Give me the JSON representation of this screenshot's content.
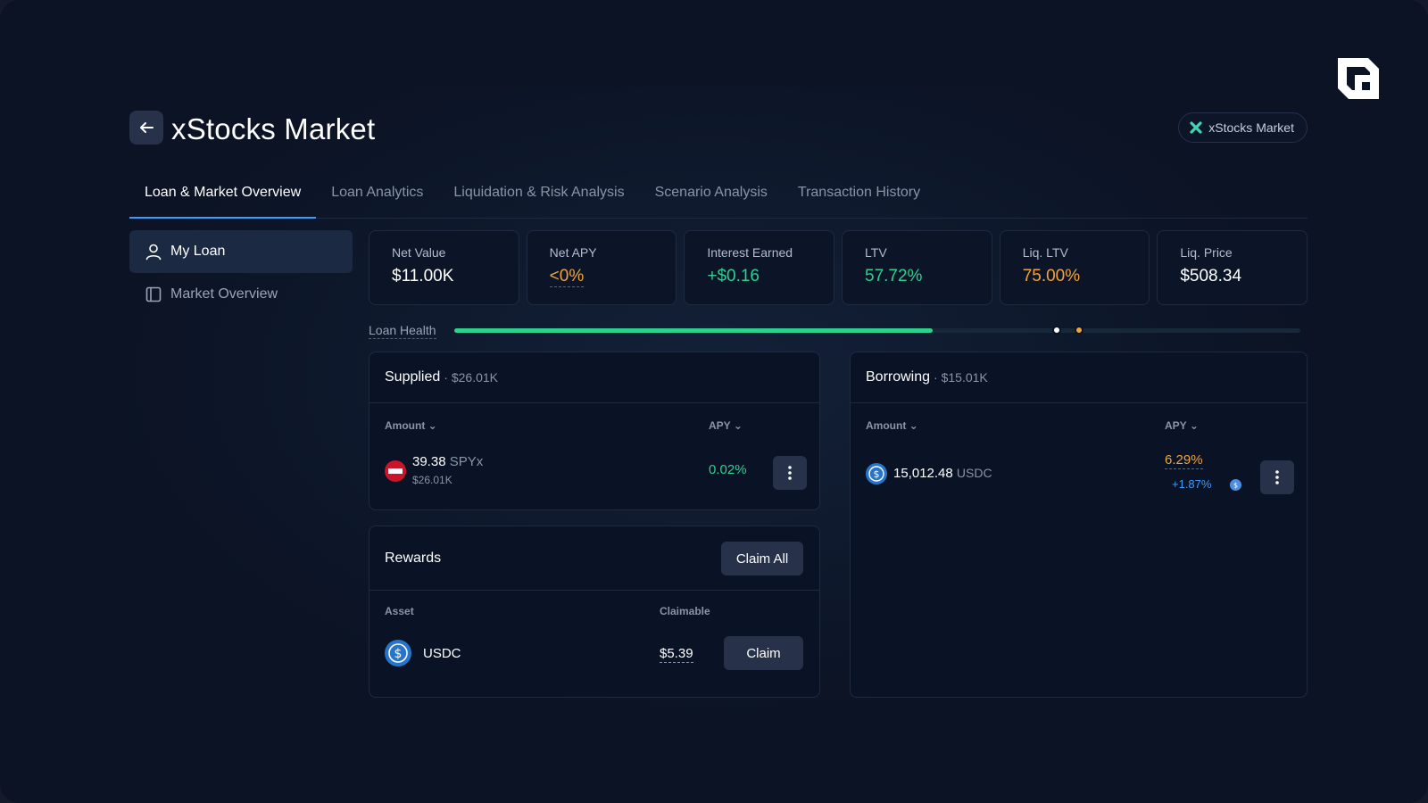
{
  "header": {
    "title": "xStocks Market",
    "market_pill": "xStocks Market"
  },
  "tabs": [
    {
      "label": "Loan & Market Overview",
      "active": true
    },
    {
      "label": "Loan Analytics",
      "active": false
    },
    {
      "label": "Liquidation & Risk Analysis",
      "active": false
    },
    {
      "label": "Scenario Analysis",
      "active": false
    },
    {
      "label": "Transaction History",
      "active": false
    }
  ],
  "sidebar": {
    "items": [
      {
        "label": "My Loan",
        "icon": "user-icon",
        "active": true
      },
      {
        "label": "Market Overview",
        "icon": "panel-icon",
        "active": false
      }
    ]
  },
  "stats": [
    {
      "label": "Net Value",
      "value": "$11.00K",
      "color": "#ffffff"
    },
    {
      "label": "Net APY",
      "value": "<0%",
      "color": "#f2a33a"
    },
    {
      "label": "Interest Earned",
      "value": "+$0.16",
      "color": "#2ed08e"
    },
    {
      "label": "LTV",
      "value": "57.72%",
      "color": "#2ed08e"
    },
    {
      "label": "Liq. LTV",
      "value": "75.00%",
      "color": "#f2a33a"
    },
    {
      "label": "Liq. Price",
      "value": "$508.34",
      "color": "#ffffff"
    }
  ],
  "loan_health": {
    "label": "Loan Health",
    "fill_fraction": 0.565,
    "current_marker_fraction": 0.712,
    "liquidation_marker_fraction": 0.738
  },
  "supplied": {
    "title": "Supplied",
    "total": "· $26.01K",
    "col_amount": "Amount",
    "col_apy": "APY",
    "row": {
      "amount": "39.38",
      "symbol": "SPYx",
      "usd_value": "$26.01K",
      "apy": "0.02%",
      "icon": "spyx-token-icon"
    }
  },
  "borrowing": {
    "title": "Borrowing",
    "total": "· $15.01K",
    "col_amount": "Amount",
    "col_apy": "APY",
    "row": {
      "amount": "15,012.48",
      "symbol": "USDC",
      "apy": "6.29%",
      "reward_apy": "+1.87%",
      "icon": "usdc-token-icon"
    }
  },
  "rewards": {
    "title": "Rewards",
    "claim_all_label": "Claim All",
    "col_asset": "Asset",
    "col_claimable": "Claimable",
    "row": {
      "asset": "USDC",
      "claimable": "$5.39",
      "claim_label": "Claim",
      "icon": "usdc-token-icon"
    }
  },
  "colors": {
    "accent_blue": "#3b9cff",
    "positive_green": "#2ed08e",
    "warning_orange": "#f2a33a"
  }
}
